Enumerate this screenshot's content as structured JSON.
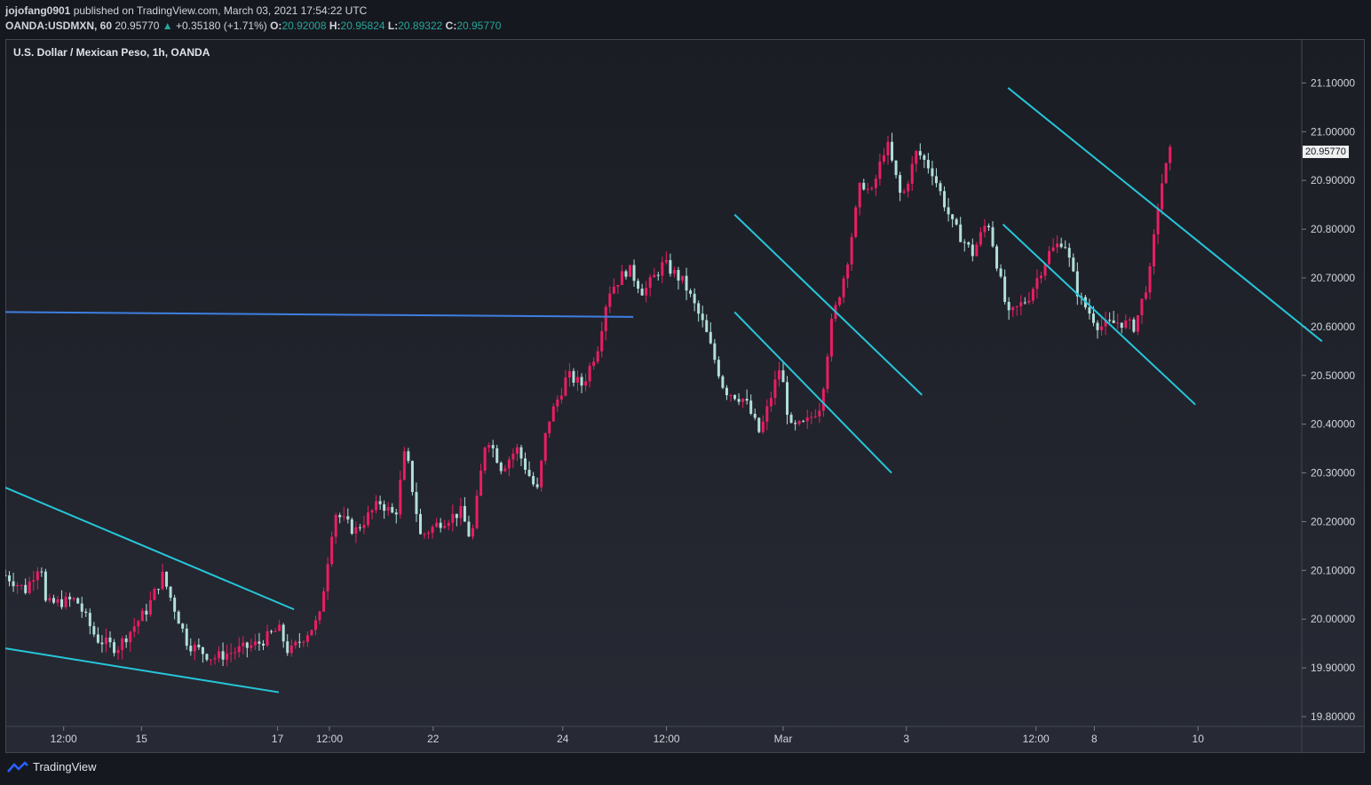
{
  "header": {
    "user": "jojofang0901",
    "published": " published on TradingView.com, March 03, 2021 17:54:22 UTC",
    "symbol": "OANDA:USDMXN, 60",
    "last": "20.95770",
    "arrow": "▲",
    "change": "+0.35180 (+1.71%)",
    "o_label": "O:",
    "o_value": "20.92008",
    "h_label": "H:",
    "h_value": "20.95824",
    "l_label": "L:",
    "l_value": "20.89322",
    "c_label": "C:",
    "c_value": "20.95770"
  },
  "footer": {
    "brand": "TradingView"
  },
  "colors": {
    "up": "#e91e63",
    "down": "#b2dfdb",
    "trendline_cyan": "#26c6da",
    "trendline_blue": "#3d7fe0",
    "background": "#1b1d24"
  },
  "chart_data": {
    "type": "candlestick",
    "title": "U.S. Dollar / Mexican Peso, 1h, OANDA",
    "current_price_label": "20.95770",
    "y_ticks": [
      "21.10000",
      "21.00000",
      "20.90000",
      "20.80000",
      "20.70000",
      "20.60000",
      "20.50000",
      "20.40000",
      "20.30000",
      "20.20000",
      "20.10000",
      "20.00000",
      "19.90000",
      "19.80000"
    ],
    "ylim": [
      19.78,
      21.19
    ],
    "x_ticks": [
      "12:00",
      "15",
      "17",
      "12:00",
      "22",
      "24",
      "12:00",
      "Mar",
      "3",
      "12:00",
      "8",
      "10"
    ],
    "x_tick_positions": [
      0.045,
      0.105,
      0.21,
      0.25,
      0.33,
      0.43,
      0.51,
      0.6,
      0.695,
      0.795,
      0.84,
      0.92
    ],
    "price_path": [
      [
        0.0,
        20.09
      ],
      [
        0.02,
        20.06
      ],
      [
        0.035,
        20.12
      ],
      [
        0.04,
        20.03
      ],
      [
        0.07,
        20.04
      ],
      [
        0.09,
        19.96
      ],
      [
        0.11,
        19.94
      ],
      [
        0.14,
        20.02
      ],
      [
        0.155,
        20.09
      ],
      [
        0.18,
        19.95
      ],
      [
        0.205,
        19.92
      ],
      [
        0.25,
        19.95
      ],
      [
        0.27,
        19.98
      ],
      [
        0.28,
        19.93
      ],
      [
        0.31,
        20.0
      ],
      [
        0.325,
        20.22
      ],
      [
        0.345,
        20.18
      ],
      [
        0.37,
        20.24
      ],
      [
        0.385,
        20.21
      ],
      [
        0.395,
        20.35
      ],
      [
        0.41,
        20.17
      ],
      [
        0.43,
        20.2
      ],
      [
        0.45,
        20.22
      ],
      [
        0.46,
        20.16
      ],
      [
        0.475,
        20.38
      ],
      [
        0.49,
        20.31
      ],
      [
        0.505,
        20.35
      ],
      [
        0.525,
        20.26
      ],
      [
        0.535,
        20.4
      ],
      [
        0.555,
        20.5
      ],
      [
        0.57,
        20.48
      ],
      [
        0.585,
        20.56
      ],
      [
        0.595,
        20.67
      ],
      [
        0.615,
        20.72
      ],
      [
        0.63,
        20.67
      ],
      [
        0.65,
        20.73
      ],
      [
        0.67,
        20.69
      ],
      [
        0.69,
        20.6
      ],
      [
        0.71,
        20.47
      ],
      [
        0.73,
        20.45
      ],
      [
        0.745,
        20.38
      ],
      [
        0.765,
        20.52
      ],
      [
        0.775,
        20.39
      ],
      [
        0.79,
        20.4
      ],
      [
        0.805,
        20.44
      ],
      [
        0.815,
        20.6
      ],
      [
        0.83,
        20.72
      ],
      [
        0.845,
        20.9
      ],
      [
        0.855,
        20.87
      ],
      [
        0.87,
        20.98
      ],
      [
        0.885,
        20.86
      ],
      [
        0.9,
        20.96
      ],
      [
        0.915,
        20.92
      ],
      [
        0.935,
        20.81
      ],
      [
        0.955,
        20.75
      ],
      [
        0.97,
        20.82
      ],
      [
        0.99,
        20.62
      ],
      [
        1.01,
        20.66
      ],
      [
        1.03,
        20.75
      ],
      [
        1.045,
        20.78
      ],
      [
        1.06,
        20.66
      ],
      [
        1.08,
        20.6
      ],
      [
        1.1,
        20.61
      ],
      [
        1.115,
        20.6
      ],
      [
        1.13,
        20.71
      ],
      [
        1.14,
        20.88
      ],
      [
        1.15,
        20.958
      ]
    ],
    "x_domain": [
      0.0,
      1.6
    ],
    "trendlines": [
      {
        "color": "blue",
        "from": [
          0.0,
          20.63
        ],
        "to": [
          0.62,
          20.62
        ]
      },
      {
        "color": "cyan",
        "from": [
          0.0,
          20.27
        ],
        "to": [
          0.285,
          20.02
        ]
      },
      {
        "color": "cyan",
        "from": [
          0.0,
          19.94
        ],
        "to": [
          0.27,
          19.85
        ]
      },
      {
        "color": "cyan",
        "from": [
          0.72,
          20.83
        ],
        "to": [
          0.905,
          20.46
        ]
      },
      {
        "color": "cyan",
        "from": [
          0.72,
          20.63
        ],
        "to": [
          0.875,
          20.3
        ]
      },
      {
        "color": "cyan",
        "from": [
          0.99,
          21.09
        ],
        "to": [
          1.3,
          20.57
        ]
      },
      {
        "color": "cyan",
        "from": [
          0.985,
          20.81
        ],
        "to": [
          1.175,
          20.44
        ]
      }
    ]
  }
}
